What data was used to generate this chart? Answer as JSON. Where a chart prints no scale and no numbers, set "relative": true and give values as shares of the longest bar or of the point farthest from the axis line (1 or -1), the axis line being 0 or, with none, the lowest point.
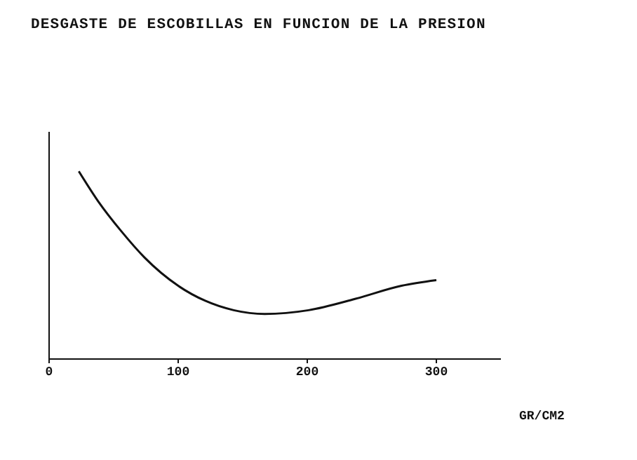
{
  "chart_data": {
    "type": "line",
    "title": "DESGASTE DE ESCOBILLAS EN FUNCION DE LA PRESION",
    "xlabel": "GR/CM2",
    "relative": true,
    "grid": false,
    "legend": false,
    "marker": "none",
    "xlim": [
      0,
      350
    ],
    "xticks": [
      0,
      100,
      200,
      300
    ],
    "series": [
      {
        "color": "#111111",
        "x": [
          23,
          38,
          56,
          74,
          100,
          121,
          143,
          167,
          201,
          237,
          273,
          300
        ],
        "values": [
          1,
          0.84,
          0.68,
          0.54,
          0.39,
          0.31,
          0.26,
          0.24,
          0.26,
          0.32,
          0.39,
          0.42
        ]
      }
    ]
  }
}
